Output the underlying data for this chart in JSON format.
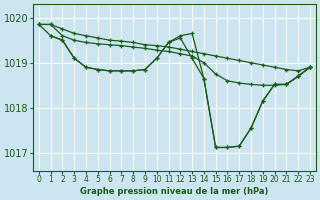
{
  "title": "Graphe pression niveau de la mer (hPa)",
  "background_color": "#cce5f0",
  "line_color": "#1a5c1a",
  "grid_color": "#ffffff",
  "ylim": [
    1016.6,
    1020.3
  ],
  "xlim": [
    -0.5,
    23.5
  ],
  "yticks": [
    1017,
    1018,
    1019,
    1020
  ],
  "xticks": [
    0,
    1,
    2,
    3,
    4,
    5,
    6,
    7,
    8,
    9,
    10,
    11,
    12,
    13,
    14,
    15,
    16,
    17,
    18,
    19,
    20,
    21,
    22,
    23
  ],
  "series": [
    {
      "x": [
        0,
        1,
        2,
        3,
        4,
        5,
        6,
        7,
        8,
        9,
        10,
        11,
        12,
        13,
        14,
        15,
        16,
        17,
        18,
        19,
        20,
        21,
        22,
        23
      ],
      "y": [
        1019.85,
        1019.85,
        1019.75,
        1019.65,
        1019.6,
        1019.55,
        1019.5,
        1019.48,
        1019.45,
        1019.4,
        1019.38,
        1019.35,
        1019.3,
        1019.25,
        1019.2,
        1019.15,
        1019.1,
        1019.05,
        1019.0,
        1018.95,
        1018.9,
        1018.85,
        1018.82,
        1018.9
      ]
    },
    {
      "x": [
        0,
        1,
        2,
        3,
        4,
        5,
        6,
        7,
        8,
        9,
        10,
        11,
        12,
        13,
        14,
        15,
        16,
        17,
        18,
        19,
        20,
        21,
        22,
        23
      ],
      "y": [
        1019.85,
        1019.85,
        1019.6,
        1019.5,
        1019.45,
        1019.42,
        1019.4,
        1019.38,
        1019.35,
        1019.32,
        1019.28,
        1019.25,
        1019.2,
        1019.15,
        1019.0,
        1018.75,
        1018.6,
        1018.55,
        1018.52,
        1018.5,
        1018.5,
        1018.52,
        1018.7,
        1018.9
      ]
    },
    {
      "x": [
        0,
        1,
        2,
        3,
        4,
        5,
        6,
        7,
        8,
        9,
        10,
        11,
        12,
        13,
        14,
        15,
        16,
        17,
        18,
        19,
        20,
        21,
        22,
        23
      ],
      "y": [
        1019.85,
        1019.6,
        1019.5,
        1019.1,
        1018.9,
        1018.85,
        1018.82,
        1018.82,
        1018.82,
        1018.85,
        1019.1,
        1019.45,
        1019.6,
        1019.65,
        1018.65,
        1017.12,
        1017.12,
        1017.15,
        1017.55,
        1018.15,
        1018.52,
        1018.52,
        1018.7,
        1018.9
      ]
    },
    {
      "x": [
        1,
        2,
        3,
        4,
        5,
        6,
        7,
        8,
        9,
        10,
        11,
        12,
        13,
        14,
        15,
        16,
        17,
        18,
        19,
        20,
        21,
        22,
        23
      ],
      "y": [
        1019.6,
        1019.5,
        1019.1,
        1018.9,
        1018.85,
        1018.82,
        1018.82,
        1018.82,
        1018.85,
        1019.1,
        1019.45,
        1019.55,
        1019.1,
        1018.65,
        1017.12,
        1017.12,
        1017.15,
        1017.55,
        1018.15,
        1018.52,
        1018.52,
        1018.7,
        1018.9
      ]
    }
  ]
}
